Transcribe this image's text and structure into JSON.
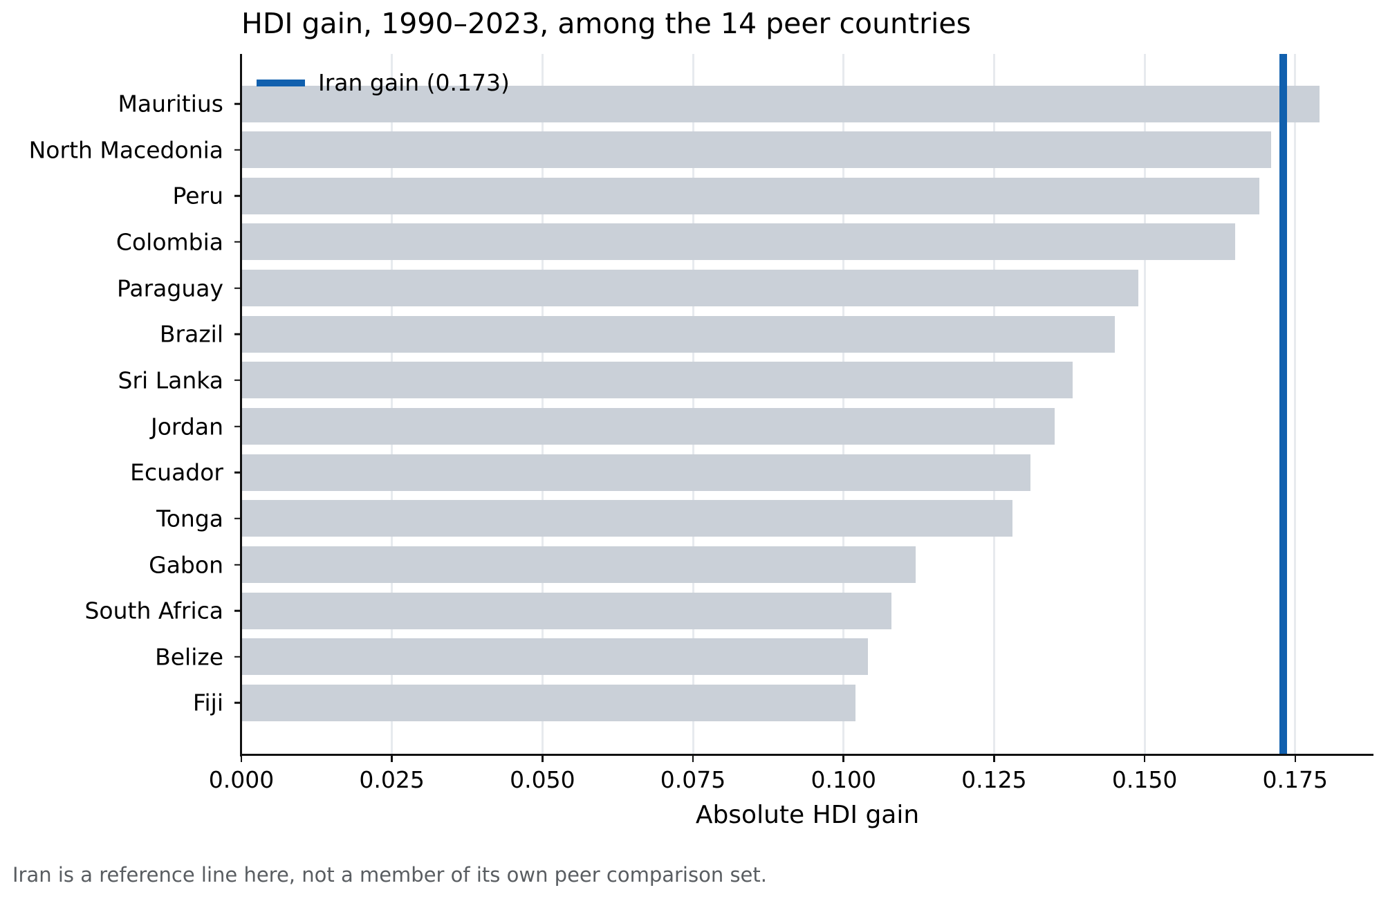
{
  "figure": {
    "title": "HDI gain, 1990–2023, among the 14 peer countries",
    "xlabel": "Absolute HDI gain",
    "legend_label": "Iran gain (0.173)",
    "note": "Iran is a reference line here, not a member of its own peer comparison set."
  },
  "chart_data": {
    "type": "bar",
    "orientation": "horizontal",
    "title": "HDI gain, 1990–2023, among the 14 peer countries",
    "xlabel": "Absolute HDI gain",
    "ylabel": "",
    "categories": [
      "Mauritius",
      "North Macedonia",
      "Peru",
      "Colombia",
      "Paraguay",
      "Brazil",
      "Sri Lanka",
      "Jordan",
      "Ecuador",
      "Tonga",
      "Gabon",
      "South Africa",
      "Belize",
      "Fiji"
    ],
    "values": [
      0.179,
      0.171,
      0.169,
      0.165,
      0.149,
      0.145,
      0.138,
      0.135,
      0.131,
      0.128,
      0.112,
      0.108,
      0.104,
      0.102
    ],
    "reference_line": {
      "label": "Iran gain (0.173)",
      "value": 0.173,
      "color": "#1160ae"
    },
    "xticks": [
      0.0,
      0.025,
      0.05,
      0.075,
      0.1,
      0.125,
      0.15,
      0.175
    ],
    "xtick_decimals": 3,
    "xlim": [
      0,
      0.188
    ],
    "bar_color": "#cad0d8",
    "grid": true,
    "grid_color": "#e7eaee",
    "legend_position": "upper left",
    "note": "Iran is a reference line here, not a member of its own peer comparison set."
  }
}
